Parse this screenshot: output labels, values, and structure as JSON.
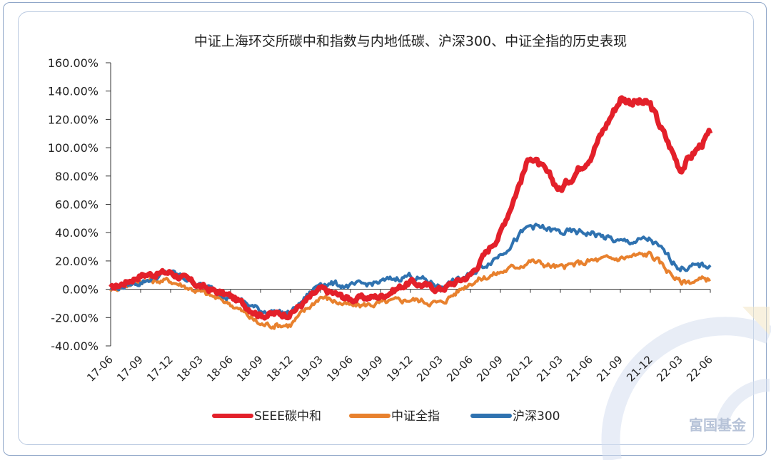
{
  "chart_data": {
    "type": "line",
    "title": "中证上海环交所碳中和指数与内地低碳、沪深300、中证全指的历史表现",
    "xlabel": "",
    "ylabel": "",
    "ylim": [
      -0.4,
      1.6
    ],
    "yticks": [
      -0.4,
      -0.2,
      0.0,
      0.2,
      0.4,
      0.6,
      0.8,
      1.0,
      1.2,
      1.4,
      1.6
    ],
    "ytick_labels": [
      "-40.00%",
      "-20.00%",
      "0.00%",
      "20.00%",
      "40.00%",
      "60.00%",
      "80.00%",
      "100.00%",
      "120.00%",
      "140.00%",
      "160.00%"
    ],
    "x": [
      "17-06",
      "17-09",
      "17-12",
      "18-03",
      "18-06",
      "18-09",
      "18-12",
      "19-03",
      "19-06",
      "19-09",
      "19-12",
      "20-03",
      "20-06",
      "20-09",
      "20-12",
      "21-03",
      "21-06",
      "21-09",
      "21-12",
      "22-03",
      "22-06"
    ],
    "grid": false,
    "legend_position": "bottom",
    "series": [
      {
        "name": "SEEE碳中和",
        "color": "#e3202a",
        "values": [
          0.0,
          0.1,
          0.12,
          0.02,
          -0.05,
          -0.18,
          -0.17,
          0.0,
          -0.07,
          -0.05,
          0.05,
          0.0,
          0.1,
          0.4,
          0.95,
          0.7,
          0.95,
          1.35,
          1.3,
          0.85,
          1.1
        ]
      },
      {
        "name": "中证全指",
        "color": "#e8812e",
        "values": [
          0.0,
          0.06,
          0.06,
          -0.02,
          -0.1,
          -0.25,
          -0.25,
          -0.05,
          -0.12,
          -0.1,
          -0.07,
          -0.1,
          0.05,
          0.12,
          0.2,
          0.15,
          0.2,
          0.22,
          0.25,
          0.05,
          0.07
        ]
      },
      {
        "name": "沪深300",
        "color": "#2f72b0",
        "values": [
          0.0,
          0.05,
          0.12,
          0.03,
          -0.05,
          -0.15,
          -0.17,
          0.05,
          0.02,
          0.05,
          0.1,
          0.02,
          0.1,
          0.25,
          0.45,
          0.4,
          0.4,
          0.33,
          0.35,
          0.15,
          0.17
        ]
      }
    ]
  },
  "watermark": {
    "text": "富国基金",
    "color": "#b7c3d8"
  }
}
